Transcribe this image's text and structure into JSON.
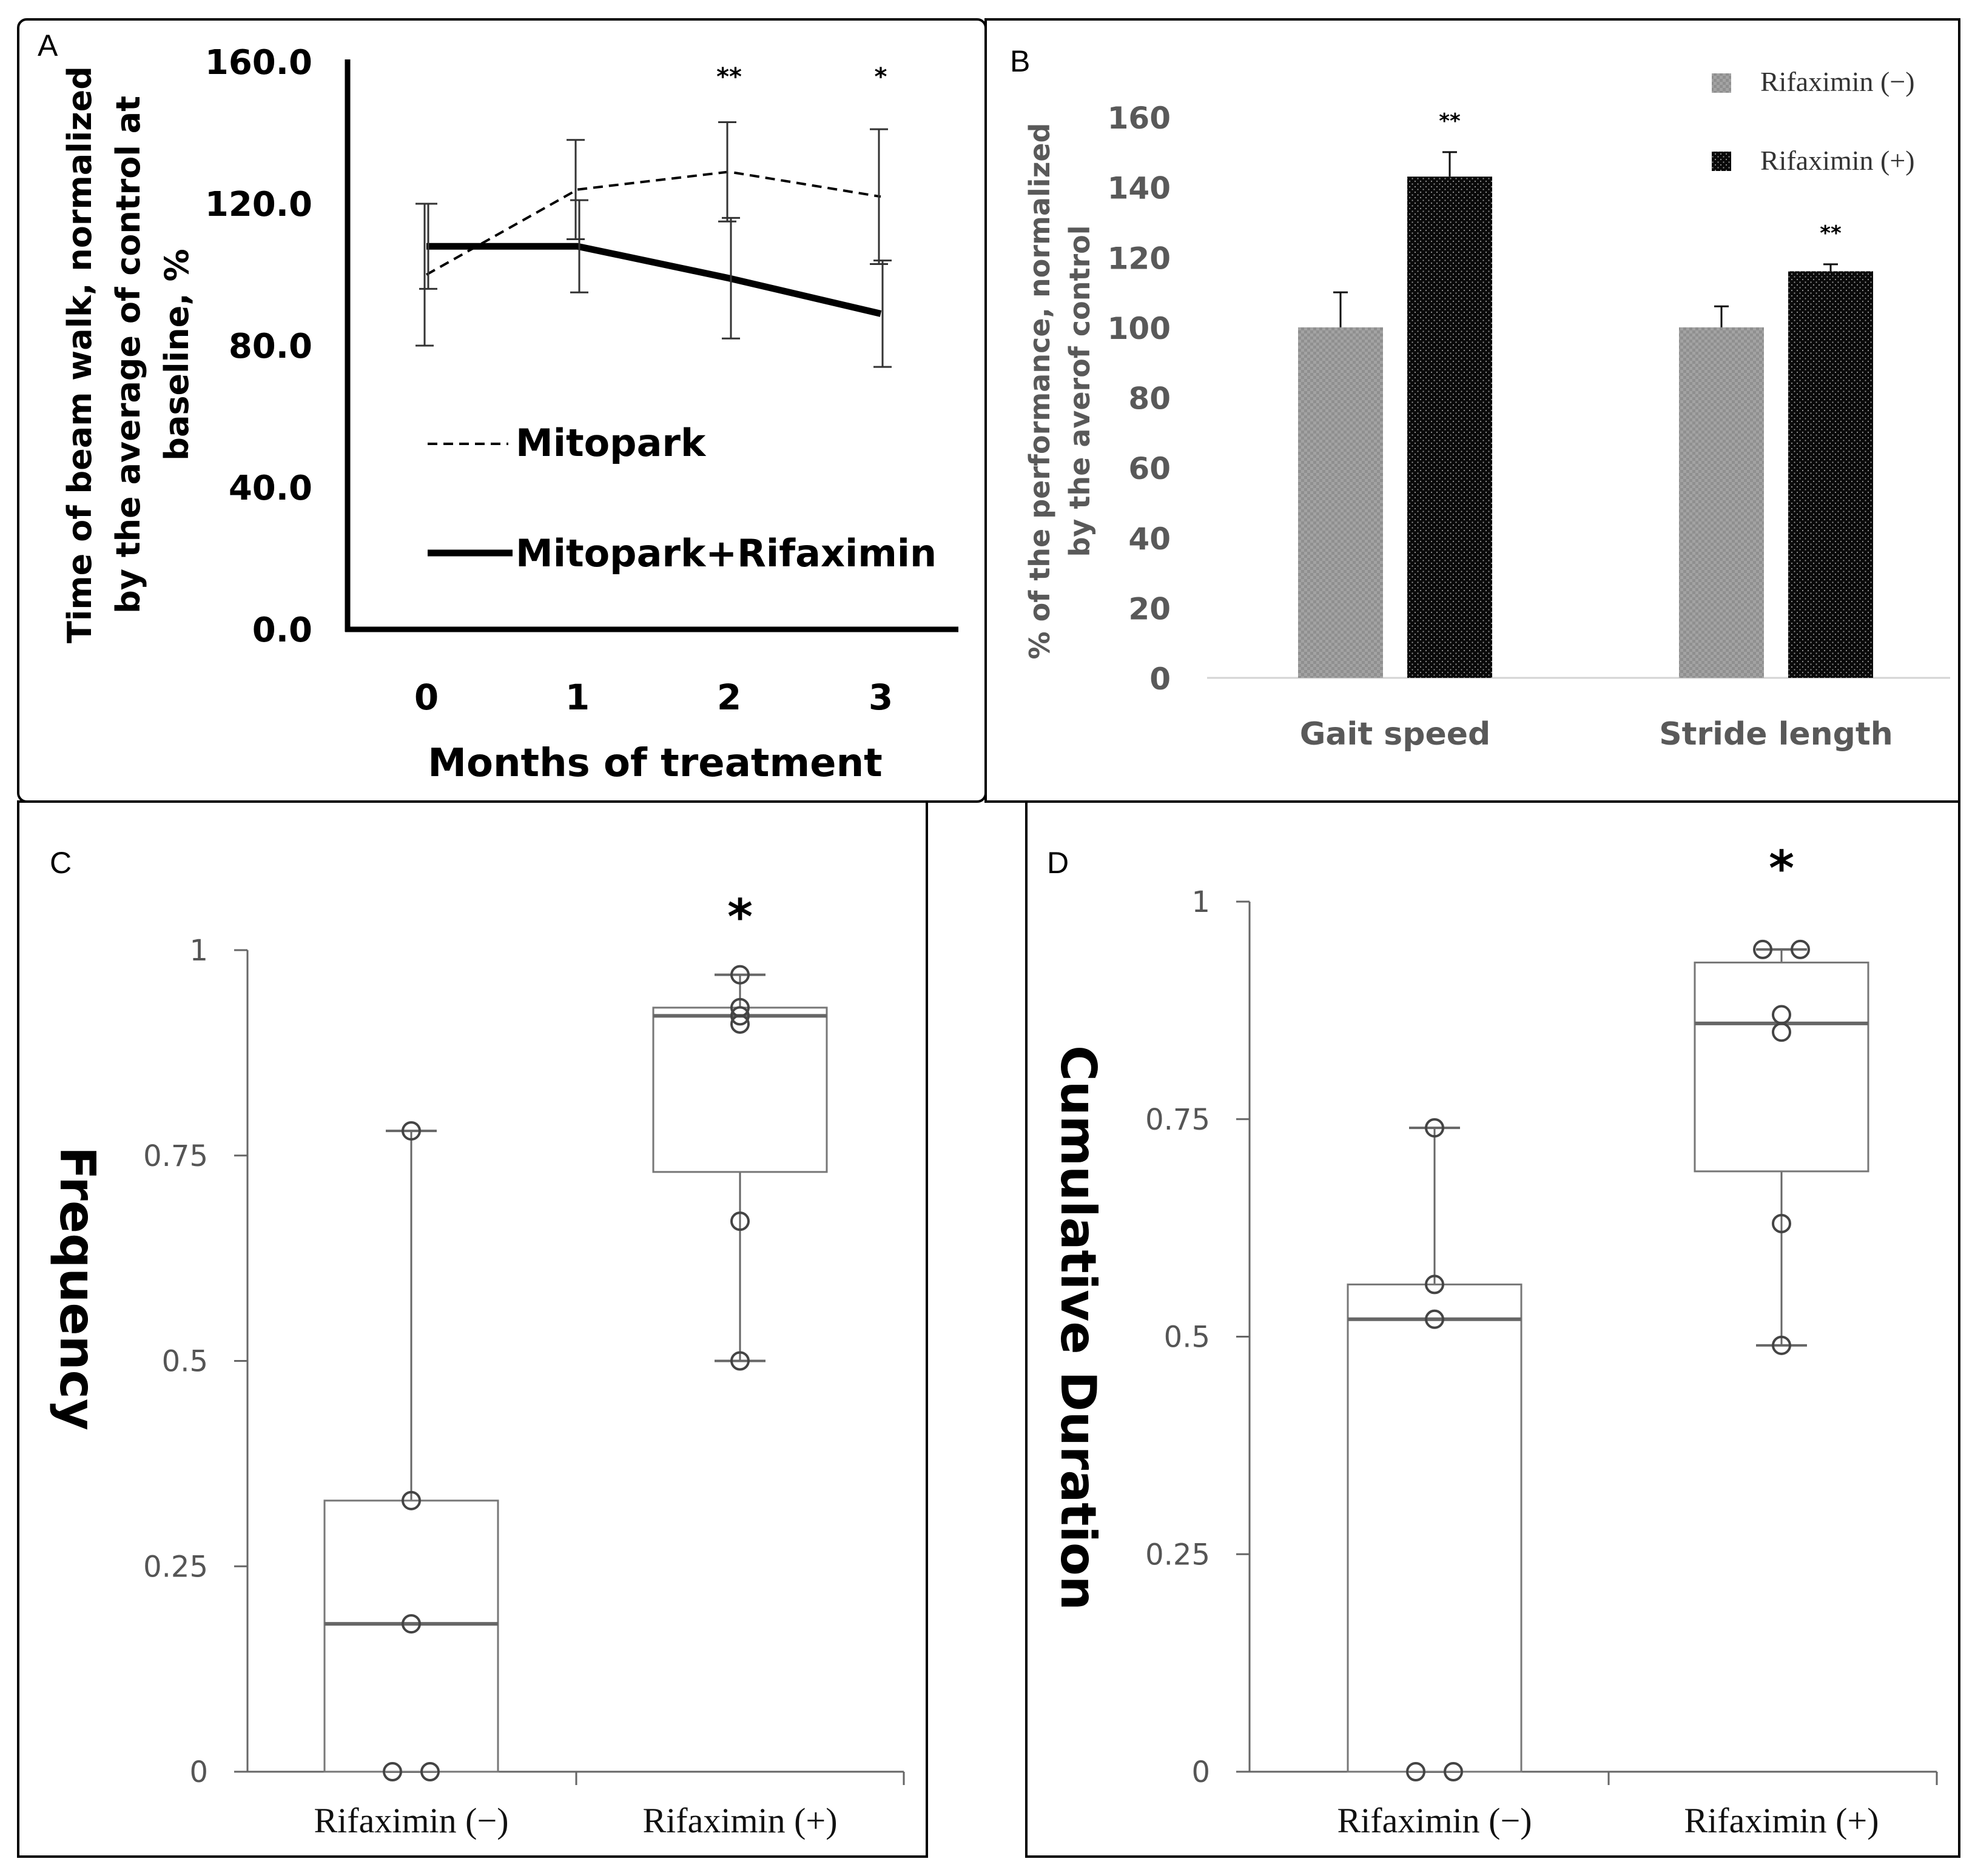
{
  "chart_data": [
    {
      "panel": "A",
      "type": "line",
      "xlabel": "Months of treatment",
      "ylabel": "Time of beam walk, normalized by the average of control at baseline, %",
      "x": [
        0,
        1,
        2,
        3
      ],
      "x_tick_labels": [
        "0",
        "1",
        "2",
        "3"
      ],
      "y_tick_labels": [
        "0.0",
        "40.0",
        "80.0",
        "120.0",
        "160.0"
      ],
      "ylim": [
        0,
        160
      ],
      "series": [
        {
          "name": "Mitopark",
          "style": "dashed",
          "values": [
            100,
            124,
            129,
            122
          ],
          "err": [
            20,
            14,
            14,
            19
          ]
        },
        {
          "name": "Mitopark+Rifaximin",
          "style": "solid",
          "values": [
            108,
            108,
            99,
            89
          ],
          "err": [
            12,
            13,
            17,
            15
          ]
        }
      ],
      "significance": [
        {
          "x": 2,
          "label": "**"
        },
        {
          "x": 3,
          "label": "*"
        }
      ],
      "legend": [
        "Mitopark",
        "Mitopark+Rifaximin"
      ]
    },
    {
      "panel": "B",
      "type": "bar",
      "ylabel": "% of the performance, normalized by the averof control",
      "categories": [
        "Gait speed",
        "Stride length"
      ],
      "y_tick_labels": [
        "0",
        "20",
        "40",
        "60",
        "80",
        "100",
        "120",
        "140",
        "160"
      ],
      "ylim": [
        0,
        160
      ],
      "series": [
        {
          "name": "Rifaximin (−)",
          "values": [
            100,
            100
          ],
          "err": [
            10,
            6
          ]
        },
        {
          "name": "Rifaximin (+)",
          "values": [
            143,
            116
          ],
          "err": [
            7,
            2
          ]
        }
      ],
      "significance": [
        "**",
        "**"
      ],
      "legend": [
        "Rifaximin (−)",
        "Rifaximin (+)"
      ],
      "legend_position": "top-right"
    },
    {
      "panel": "C",
      "type": "box",
      "ylabel": "Frequency",
      "categories": [
        "Rifaximin (−)",
        "Rifaximin (+)"
      ],
      "y_tick_labels": [
        "0",
        "0.25",
        "0.5",
        "0.75",
        "1"
      ],
      "ylim": [
        0,
        1
      ],
      "boxes": [
        {
          "q1": 0,
          "median": 0.18,
          "q3": 0.33,
          "whisker_low": 0,
          "whisker_high": 0.78,
          "points": [
            0,
            0,
            0.18,
            0.33,
            0.78
          ]
        },
        {
          "q1": 0.73,
          "median": 0.92,
          "q3": 0.93,
          "whisker_low": 0.5,
          "whisker_high": 0.97,
          "points": [
            0.5,
            0.67,
            0.91,
            0.92,
            0.93,
            0.97
          ]
        }
      ],
      "significance": "*"
    },
    {
      "panel": "D",
      "type": "box",
      "ylabel": "Cumulative Duration",
      "categories": [
        "Rifaximin (−)",
        "Rifaximin (+)"
      ],
      "y_tick_labels": [
        "0",
        "0.25",
        "0.5",
        "0.75",
        "1"
      ],
      "ylim": [
        0,
        1
      ],
      "boxes": [
        {
          "q1": 0,
          "median": 0.52,
          "q3": 0.56,
          "whisker_low": 0,
          "whisker_high": 0.74,
          "points": [
            0,
            0,
            0.52,
            0.56,
            0.74
          ]
        },
        {
          "q1": 0.69,
          "median": 0.86,
          "q3": 0.93,
          "whisker_low": 0.49,
          "whisker_high": 0.945,
          "points": [
            0.49,
            0.63,
            0.85,
            0.87,
            0.945,
            0.945
          ]
        }
      ],
      "significance": "*"
    }
  ]
}
